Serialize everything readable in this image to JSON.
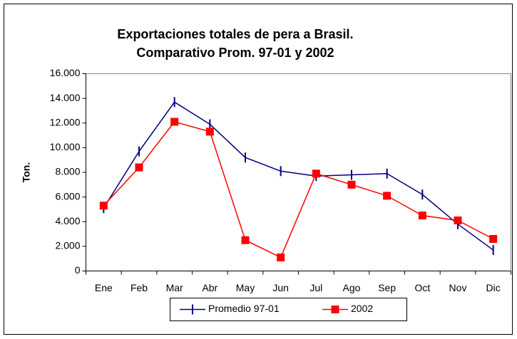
{
  "chart_data": {
    "type": "line",
    "title": "Exportaciones totales de pera a Brasil.",
    "subtitle": "Comparativo Prom. 97-01 y 2002",
    "y_label": "Ton.",
    "categories": [
      "Ene",
      "Feb",
      "Mar",
      "Abr",
      "May",
      "Jun",
      "Jul",
      "Ago",
      "Sep",
      "Oct",
      "Nov",
      "Dic"
    ],
    "series": [
      {
        "name": "Promedio 97-01",
        "color": "#000080",
        "marker": "dash",
        "values": [
          5100,
          9700,
          13700,
          11900,
          9200,
          8100,
          7700,
          7800,
          7900,
          6200,
          3800,
          1700
        ]
      },
      {
        "name": "2002",
        "color": "#ff0000",
        "marker": "square",
        "values": [
          5300,
          8400,
          12100,
          11300,
          2500,
          1100,
          7900,
          7000,
          6100,
          4500,
          4100,
          2600
        ]
      }
    ],
    "ylim": [
      0,
      16000
    ],
    "yticks": [
      0,
      {
        "value": 2000,
        "label": "2.000"
      },
      {
        "value": 4000,
        "label": "4.000"
      },
      {
        "value": 6000,
        "label": "6.000"
      },
      {
        "value": 8000,
        "label": "8.000"
      },
      {
        "value": 10000,
        "label": "10.000"
      },
      {
        "value": 12000,
        "label": "12.000"
      },
      {
        "value": 14000,
        "label": "14.000"
      },
      {
        "value": 16000,
        "label": "16.000"
      }
    ],
    "grid": false,
    "legend": "bottom"
  }
}
